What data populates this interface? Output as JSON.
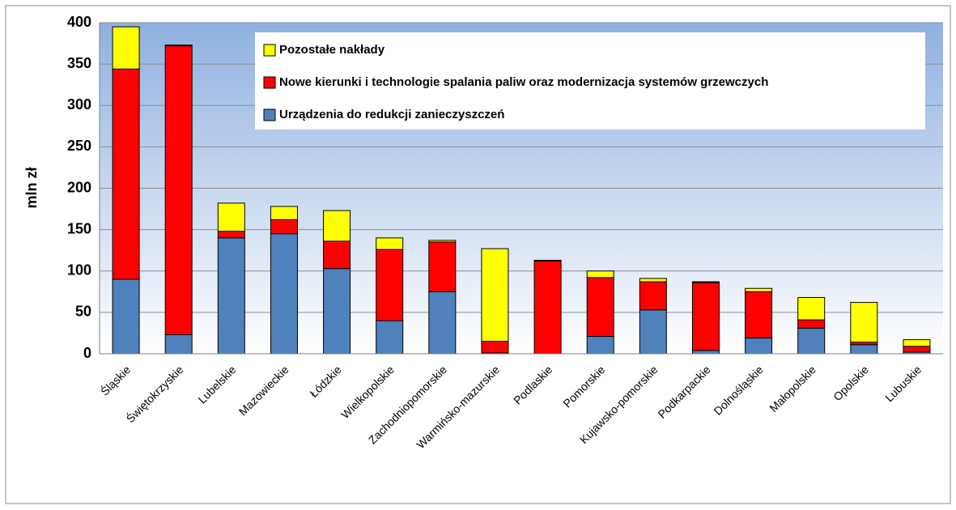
{
  "chart_data": {
    "type": "stacked_bar",
    "y_label": "mln zł",
    "categories": [
      "Śląskie",
      "Świętokrzyskie",
      "Lubelskie",
      "Mazowieckie",
      "Łódzkie",
      "Wielkopolskie",
      "Zachodniopomorskie",
      "Warmińsko-mazurskie",
      "Podlaskie",
      "Pomorskie",
      "Kujawsko-pomorskie",
      "Podkarpackie",
      "Dolnośląskie",
      "Małopolskie",
      "Opolskie",
      "Lubuskie"
    ],
    "series": [
      {
        "name": "Urządzenia do redukcji zanieczyszczeń",
        "color": "#4f81bd",
        "values": [
          90,
          23,
          140,
          145,
          103,
          40,
          75,
          1,
          0,
          21,
          53,
          4,
          19,
          31,
          11,
          2
        ]
      },
      {
        "name": "Nowe kierunki i technologie spalania paliw oraz modernizacja systemów grzewczych",
        "color": "#ff0000",
        "values": [
          254,
          349,
          8,
          17,
          33,
          86,
          60,
          14,
          112,
          71,
          34,
          82,
          56,
          10,
          3,
          7
        ]
      },
      {
        "name": "Pozostałe nakłady",
        "color": "#ffff00",
        "values": [
          51,
          1,
          34,
          16,
          37,
          14,
          2,
          112,
          1,
          8,
          4,
          1,
          4,
          27,
          48,
          8
        ]
      }
    ],
    "ylim": [
      0,
      400
    ],
    "yticks": [
      0,
      50,
      100,
      150,
      200,
      250,
      300,
      350,
      400
    ],
    "grid": true
  }
}
